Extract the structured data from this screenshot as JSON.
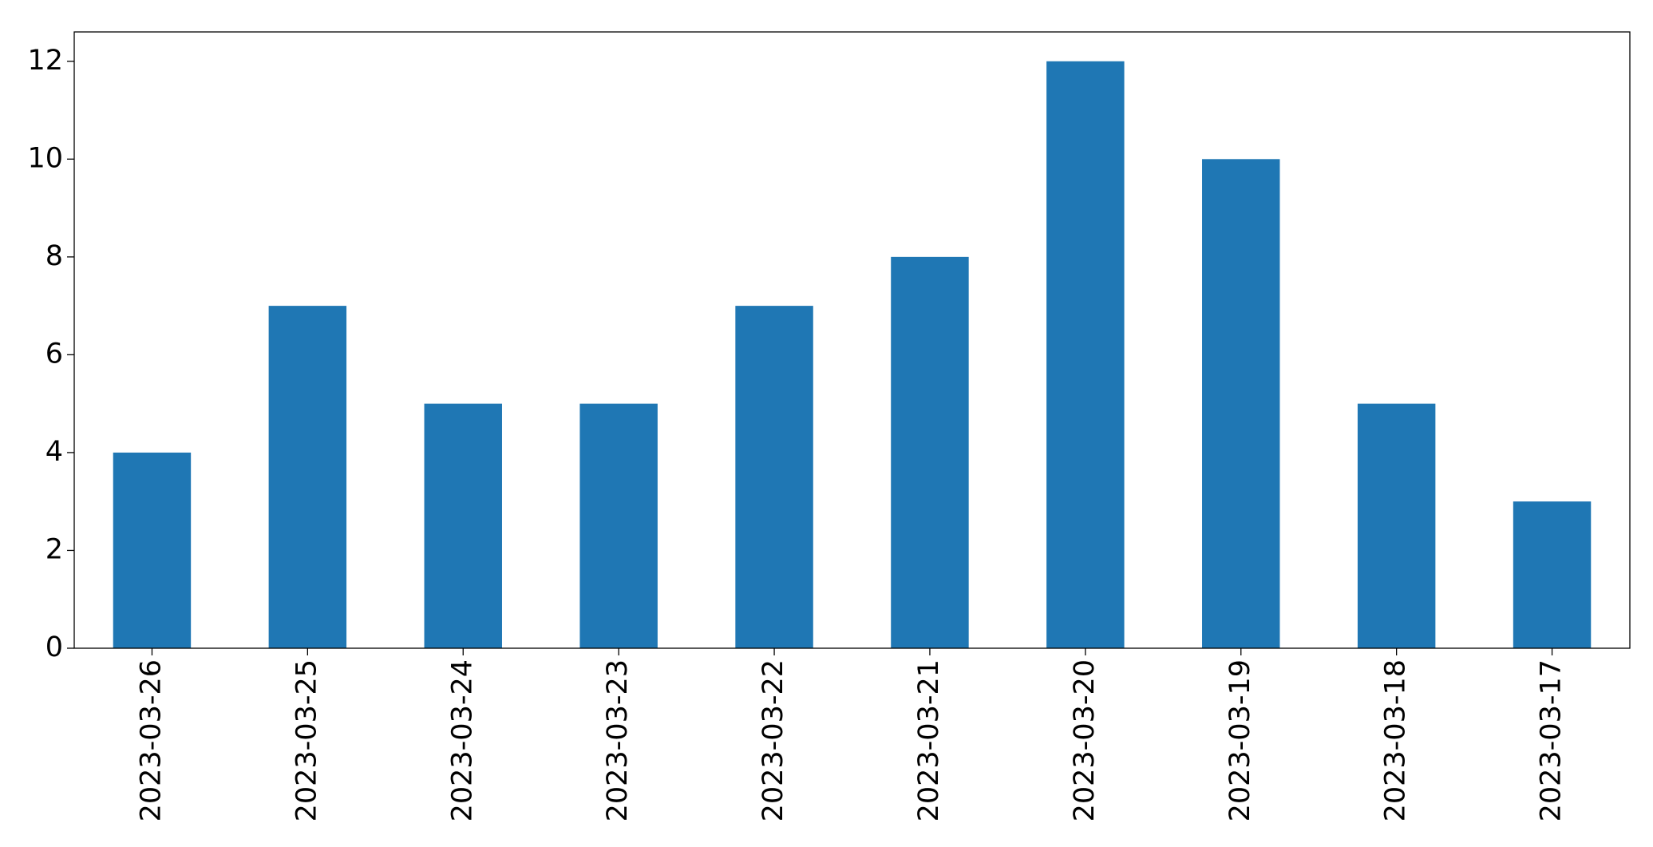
{
  "chart_data": {
    "type": "bar",
    "categories": [
      "2023-03-26",
      "2023-03-25",
      "2023-03-24",
      "2023-03-23",
      "2023-03-22",
      "2023-03-21",
      "2023-03-20",
      "2023-03-19",
      "2023-03-18",
      "2023-03-17"
    ],
    "values": [
      4,
      7,
      5,
      5,
      7,
      8,
      12,
      10,
      5,
      3
    ],
    "color": "#1f77b4",
    "ylim": [
      0,
      12.6
    ],
    "yticks": [
      0,
      2,
      4,
      6,
      8,
      10,
      12
    ],
    "grid": false
  }
}
